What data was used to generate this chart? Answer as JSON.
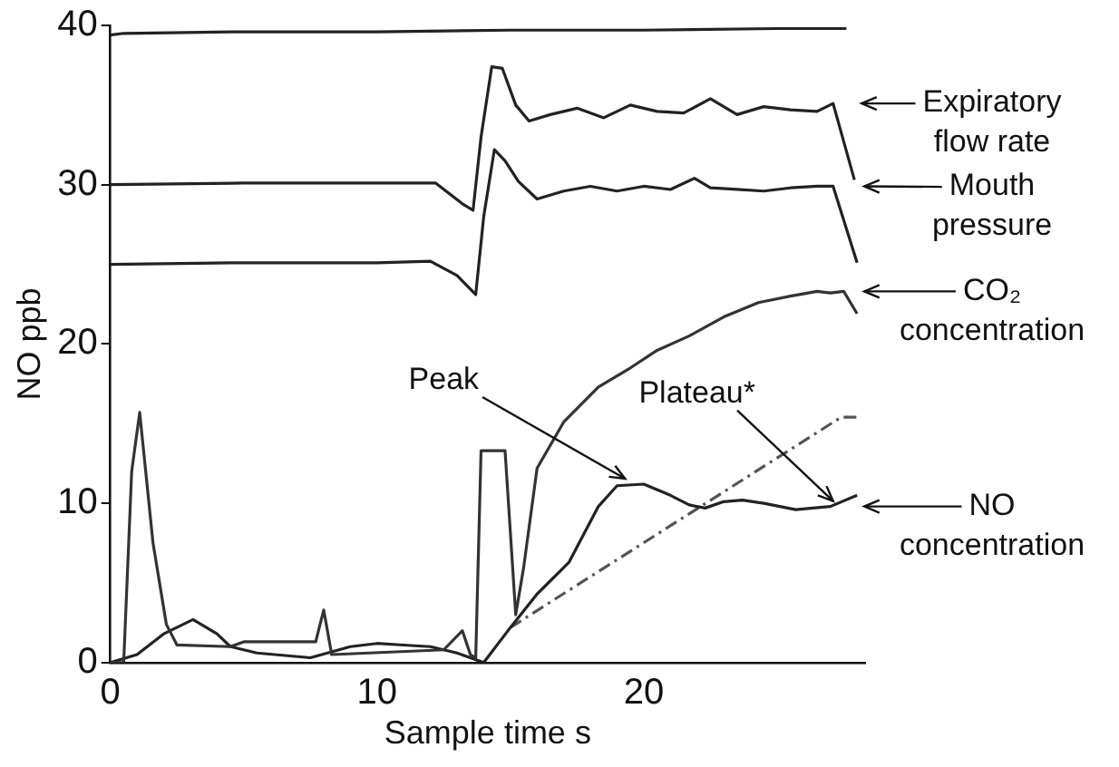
{
  "chart_data": {
    "type": "line",
    "xlabel": "Sample time s",
    "ylabel": "NO ppb",
    "xlim": [
      0,
      28.3
    ],
    "xticks": [
      0,
      10,
      20
    ],
    "ylim": [
      0,
      40
    ],
    "yticks": [
      0,
      10,
      20,
      30,
      40
    ],
    "grid": false,
    "legend": false,
    "marker": "none",
    "series": [
      {
        "color": "#222222",
        "x": [
          0,
          0.5,
          5,
          10,
          15,
          20,
          25,
          27.6
        ],
        "values": [
          39.4,
          39.5,
          39.6,
          39.6,
          39.7,
          39.7,
          39.8,
          39.8
        ]
      },
      {
        "name": "Expiratory flow rate",
        "color": "#222222",
        "x": [
          0,
          5,
          10,
          12.2,
          13.2,
          13.6,
          13.9,
          14.3,
          14.7,
          15.2,
          15.7,
          16.5,
          17.5,
          18.5,
          19.5,
          20.5,
          21.5,
          22.5,
          23.5,
          24.5,
          25.5,
          26.5,
          27.1,
          27.9
        ],
        "values": [
          30,
          30.1,
          30.1,
          30.1,
          28.8,
          28.4,
          33,
          37.4,
          37.3,
          35,
          34,
          34.4,
          34.8,
          34.2,
          35,
          34.6,
          34.5,
          35.4,
          34.4,
          34.9,
          34.7,
          34.6,
          35.1,
          30.3
        ]
      },
      {
        "name": "Mouth pressure",
        "color": "#222222",
        "x": [
          0,
          5,
          10,
          12,
          13,
          13.7,
          14,
          14.4,
          14.8,
          15.3,
          16,
          17,
          18,
          19,
          20,
          21,
          21.9,
          22.5,
          23.5,
          24.5,
          25.5,
          26.5,
          27.1,
          28
        ],
        "values": [
          25,
          25.1,
          25.1,
          25.2,
          24.3,
          23.1,
          28,
          32.2,
          31.5,
          30.2,
          29.1,
          29.6,
          29.9,
          29.6,
          29.9,
          29.7,
          30.4,
          29.8,
          29.7,
          29.6,
          29.8,
          29.9,
          29.9,
          25.1
        ]
      },
      {
        "name": "CO₂ concentration",
        "color": "#333333",
        "x": [
          0,
          0.5,
          0.8,
          1.1,
          1.6,
          2.1,
          2.5,
          4.5,
          5,
          7.7,
          8,
          8.3,
          12.5,
          13.2,
          13.5,
          13.7,
          13.9,
          14.8,
          15.2,
          15.5,
          16,
          17,
          18.3,
          19.5,
          20.5,
          21.7,
          23,
          24.3,
          25.5,
          26.5,
          27,
          27.5,
          28
        ],
        "values": [
          0,
          0,
          12,
          15.7,
          7.5,
          2.4,
          1.1,
          1,
          1.3,
          1.3,
          3.3,
          0.5,
          0.8,
          2,
          0.5,
          0.3,
          13.3,
          13.3,
          3,
          6,
          12.2,
          15.1,
          17.3,
          18.5,
          19.6,
          20.5,
          21.7,
          22.6,
          23,
          23.3,
          23.2,
          23.3,
          21.9
        ]
      },
      {
        "name": "NO concentration",
        "color": "#222222",
        "x": [
          0,
          1,
          2,
          3.1,
          4,
          4.5,
          5.5,
          7.5,
          9,
          10,
          11,
          12,
          13,
          13.5,
          14,
          15,
          16,
          17.2,
          18.3,
          19,
          20,
          21,
          21.7,
          22.3,
          23,
          23.7,
          24.5,
          25.7,
          27,
          28
        ],
        "values": [
          0,
          0.5,
          1.8,
          2.7,
          1.8,
          1,
          0.6,
          0.3,
          1,
          1.2,
          1.1,
          1,
          0.6,
          0.3,
          0,
          2.2,
          4.3,
          6.3,
          9.8,
          11.1,
          11.2,
          10.5,
          9.9,
          9.7,
          10.1,
          10.2,
          10,
          9.6,
          9.8,
          10.5
        ]
      },
      {
        "color": "#555555",
        "line_style": "dashed",
        "x": [
          15,
          27.4,
          28
        ],
        "values": [
          2.2,
          15.4,
          15.4
        ]
      }
    ],
    "annotations": [
      {
        "text": "Peak",
        "x": 19.3,
        "y": 11.2
      },
      {
        "text": "Plateau*",
        "x": 27.1,
        "y": 9.8
      }
    ]
  }
}
